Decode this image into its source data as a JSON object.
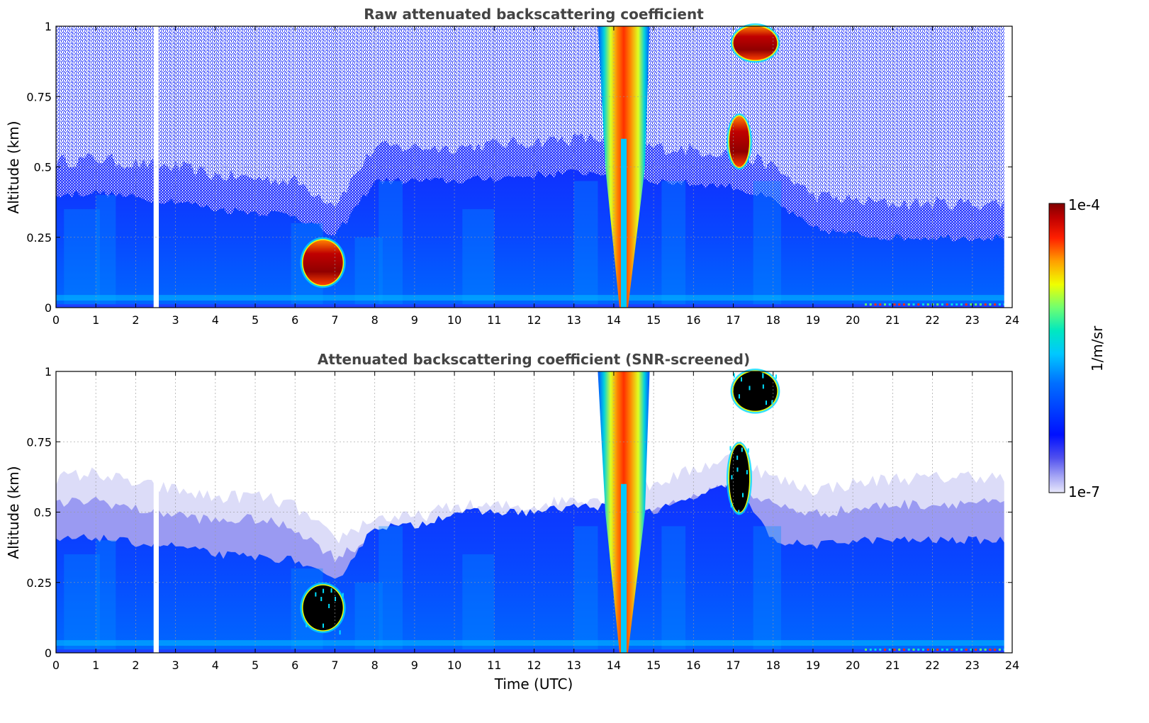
{
  "chart_data": [
    {
      "type": "heatmap",
      "title": "Raw attenuated backscattering coefficient",
      "xlabel": "",
      "ylabel": "Altitude (km)",
      "xlim": [
        0,
        24
      ],
      "ylim": [
        0,
        1
      ],
      "xticks": [
        "0",
        "1",
        "2",
        "3",
        "4",
        "5",
        "6",
        "7",
        "8",
        "9",
        "10",
        "11",
        "12",
        "13",
        "14",
        "15",
        "16",
        "17",
        "18",
        "19",
        "20",
        "21",
        "22",
        "23",
        "24"
      ],
      "yticks": [
        "0",
        "0.25",
        "0.5",
        "0.75",
        "1"
      ],
      "grid": true,
      "data_end_time": 23.8,
      "gaps": [
        [
          2.45,
          2.58
        ]
      ],
      "features": [
        {
          "kind": "boundary_layer",
          "x": [
            0,
            1,
            2,
            3,
            4,
            5,
            6,
            7,
            8,
            9,
            10,
            11,
            12,
            13,
            14,
            15,
            16,
            17,
            18,
            19,
            20,
            21,
            22,
            23,
            23.8
          ],
          "top_km": [
            0.4,
            0.41,
            0.39,
            0.38,
            0.35,
            0.34,
            0.33,
            0.25,
            0.45,
            0.45,
            0.45,
            0.46,
            0.47,
            0.48,
            0.48,
            0.45,
            0.44,
            0.43,
            0.38,
            0.28,
            0.26,
            0.25,
            0.25,
            0.25,
            0.25
          ]
        },
        {
          "kind": "cloud",
          "x_range": [
            6.2,
            7.2
          ],
          "alt_range": [
            0.08,
            0.24
          ],
          "level": "1e-4"
        },
        {
          "kind": "precipitation",
          "x_range": [
            13.6,
            14.9
          ],
          "alt_range": [
            0,
            1
          ],
          "level": "high"
        },
        {
          "kind": "cloud",
          "x_range": [
            17.0,
            18.1
          ],
          "alt_range": [
            0.88,
            1.0
          ],
          "level": "1e-4"
        },
        {
          "kind": "cloud",
          "x_range": [
            16.9,
            17.4
          ],
          "alt_range": [
            0.5,
            0.68
          ],
          "level": "high"
        }
      ]
    },
    {
      "type": "heatmap",
      "title": "Attenuated backscattering coefficient (SNR-screened)",
      "xlabel": "Time (UTC)",
      "ylabel": "Altitude (km)",
      "xlim": [
        0,
        24
      ],
      "ylim": [
        0,
        1
      ],
      "xticks": [
        "0",
        "1",
        "2",
        "3",
        "4",
        "5",
        "6",
        "7",
        "8",
        "9",
        "10",
        "11",
        "12",
        "13",
        "14",
        "15",
        "16",
        "17",
        "18",
        "19",
        "20",
        "21",
        "22",
        "23",
        "24"
      ],
      "yticks": [
        "0",
        "0.25",
        "0.5",
        "0.75",
        "1"
      ],
      "grid": true,
      "data_end_time": 23.8,
      "gaps": [
        [
          2.45,
          2.58
        ]
      ],
      "features": [
        {
          "kind": "boundary_layer",
          "x": [
            0,
            1,
            2,
            3,
            4,
            5,
            6,
            7,
            8,
            9,
            10,
            11,
            12,
            13,
            14,
            15,
            16,
            17,
            18,
            19,
            20,
            21,
            22,
            23,
            23.8
          ],
          "top_km": [
            0.4,
            0.41,
            0.39,
            0.38,
            0.35,
            0.34,
            0.33,
            0.25,
            0.45,
            0.45,
            0.5,
            0.5,
            0.5,
            0.52,
            0.52,
            0.5,
            0.55,
            0.6,
            0.4,
            0.38,
            0.4,
            0.4,
            0.4,
            0.4,
            0.4
          ]
        },
        {
          "kind": "faint_layer",
          "x": [
            0,
            1,
            2,
            3,
            4,
            5,
            6,
            7,
            8,
            9,
            10,
            11,
            12,
            13,
            14,
            15,
            16,
            17,
            18,
            19,
            20,
            21,
            22,
            23,
            23.8
          ],
          "top_km": [
            0.62,
            0.64,
            0.6,
            0.58,
            0.55,
            0.56,
            0.52,
            0.4,
            0.48,
            0.48,
            0.52,
            0.52,
            0.52,
            0.55,
            0.55,
            0.6,
            0.65,
            0.7,
            0.62,
            0.58,
            0.6,
            0.62,
            0.62,
            0.63,
            0.62
          ]
        },
        {
          "kind": "cloud",
          "x_range": [
            6.2,
            7.2
          ],
          "alt_range": [
            0.08,
            0.24
          ],
          "level": "saturated"
        },
        {
          "kind": "precipitation",
          "x_range": [
            13.6,
            14.9
          ],
          "alt_range": [
            0,
            1
          ],
          "level": "high"
        },
        {
          "kind": "cloud",
          "x_range": [
            17.0,
            18.1
          ],
          "alt_range": [
            0.86,
            1.0
          ],
          "level": "saturated"
        },
        {
          "kind": "cloud",
          "x_range": [
            16.9,
            17.4
          ],
          "alt_range": [
            0.5,
            0.74
          ],
          "level": "saturated"
        }
      ]
    }
  ],
  "colorbar": {
    "label": "1/m/sr",
    "max_label": "1e-4",
    "min_label": "1e-7",
    "scale": "log",
    "colormap": [
      "#e8e8fb",
      "#8080f0",
      "#0010ff",
      "#0050ff",
      "#00b0ff",
      "#00e8d0",
      "#60ff80",
      "#ffff00",
      "#ffa000",
      "#ff2000",
      "#c00000",
      "#800000"
    ]
  }
}
